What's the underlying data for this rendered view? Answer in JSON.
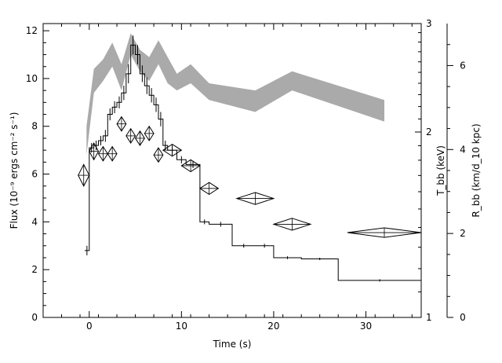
{
  "chart_data": {
    "type": "line",
    "title": "",
    "xlabel": "Time (s)",
    "xlim": [
      -5,
      36
    ],
    "x_ticks": [
      0,
      10,
      20,
      30
    ],
    "x_tick_labels": [
      "0",
      "10",
      "20",
      "30"
    ],
    "left_axis": {
      "label": "Flux (10⁻⁹ ergs cm⁻² s⁻¹)",
      "ylim": [
        0,
        12.3
      ],
      "ticks": [
        0,
        2,
        4,
        6,
        8,
        10,
        12
      ],
      "tick_labels": [
        "0",
        "2",
        "4",
        "6",
        "8",
        "10",
        "12"
      ]
    },
    "middle_axis": {
      "label": "T_bb (keV)",
      "scale": "log",
      "ylim": [
        1,
        3
      ],
      "ticks": [
        1,
        2,
        3
      ],
      "tick_labels": [
        "1",
        "2",
        "3"
      ]
    },
    "right_axis": {
      "label": "R_bb (km/d_10 kpc)",
      "ylim": [
        0,
        7
      ],
      "ticks": [
        0,
        2,
        4,
        6
      ],
      "tick_labels": [
        "0",
        "2",
        "4",
        "6"
      ]
    },
    "series": [
      {
        "kind": "histogram",
        "x_edges": [
          -0.5,
          0,
          0.5,
          1,
          1.5,
          2,
          2.5,
          3,
          3.5,
          4,
          4.5,
          5,
          5.5,
          6,
          6.5,
          7,
          7.5,
          8,
          8.5,
          9.5,
          10.5,
          12,
          13,
          15.5,
          18,
          20,
          23,
          27,
          37
        ],
        "values": [
          2.8,
          7.1,
          7.2,
          7.4,
          7.6,
          8.5,
          8.8,
          9.0,
          9.4,
          10.2,
          11.4,
          11.0,
          10.2,
          9.7,
          9.3,
          8.9,
          8.3,
          7.2,
          7.0,
          6.6,
          6.4,
          4.0,
          3.9,
          3.0,
          3.0,
          2.5,
          2.45,
          1.55
        ],
        "errors": [
          0.2,
          0.2,
          0.2,
          0.2,
          0.25,
          0.25,
          0.25,
          0.25,
          0.3,
          0.4,
          0.4,
          0.4,
          0.35,
          0.35,
          0.3,
          0.3,
          0.3,
          0.2,
          0.2,
          0.15,
          0.15,
          0.1,
          0.1,
          0.08,
          0.08,
          0.06,
          0.05,
          0.05
        ]
      },
      {
        "kind": "diamonds",
        "points": [
          {
            "x": -0.6,
            "xerr": 0.6,
            "y": 5.95,
            "yerr": 0.45
          },
          {
            "x": 0.5,
            "xerr": 0.5,
            "y": 6.95,
            "yerr": 0.35
          },
          {
            "x": 1.5,
            "xerr": 0.5,
            "y": 6.85,
            "yerr": 0.3
          },
          {
            "x": 2.5,
            "xerr": 0.5,
            "y": 6.85,
            "yerr": 0.3
          },
          {
            "x": 3.5,
            "xerr": 0.5,
            "y": 8.1,
            "yerr": 0.3
          },
          {
            "x": 4.5,
            "xerr": 0.5,
            "y": 7.6,
            "yerr": 0.3
          },
          {
            "x": 5.5,
            "xerr": 0.5,
            "y": 7.5,
            "yerr": 0.3
          },
          {
            "x": 6.5,
            "xerr": 0.5,
            "y": 7.7,
            "yerr": 0.3
          },
          {
            "x": 7.5,
            "xerr": 0.5,
            "y": 6.8,
            "yerr": 0.3
          },
          {
            "x": 9.0,
            "xerr": 1.0,
            "y": 7.0,
            "yerr": 0.25
          },
          {
            "x": 11.0,
            "xerr": 1.0,
            "y": 6.35,
            "yerr": 0.25
          },
          {
            "x": 13.0,
            "xerr": 1.0,
            "y": 5.4,
            "yerr": 0.25
          },
          {
            "x": 18.0,
            "xerr": 2.0,
            "y": 4.98,
            "yerr": 0.25
          },
          {
            "x": 22.0,
            "xerr": 2.0,
            "y": 3.9,
            "yerr": 0.25
          },
          {
            "x": 32.0,
            "xerr": 4.0,
            "y": 3.55,
            "yerr": 0.2
          }
        ]
      },
      {
        "kind": "band",
        "x": [
          -0.3,
          0.5,
          1.5,
          2.5,
          3.5,
          4.5,
          5.5,
          6.5,
          7.5,
          8.5,
          9.5,
          11,
          13,
          18,
          22,
          32
        ],
        "upper": [
          8.0,
          10.4,
          10.8,
          11.5,
          10.6,
          11.9,
          11.2,
          10.9,
          11.6,
          10.9,
          10.2,
          10.6,
          9.8,
          9.5,
          10.3,
          9.1
        ],
        "lower": [
          6.8,
          9.4,
          9.9,
          10.5,
          9.5,
          11.0,
          10.3,
          9.9,
          10.6,
          9.8,
          9.5,
          9.8,
          9.1,
          8.6,
          9.5,
          8.2
        ],
        "color": "#aaaaaa"
      }
    ],
    "grid": false,
    "legend": "none"
  }
}
